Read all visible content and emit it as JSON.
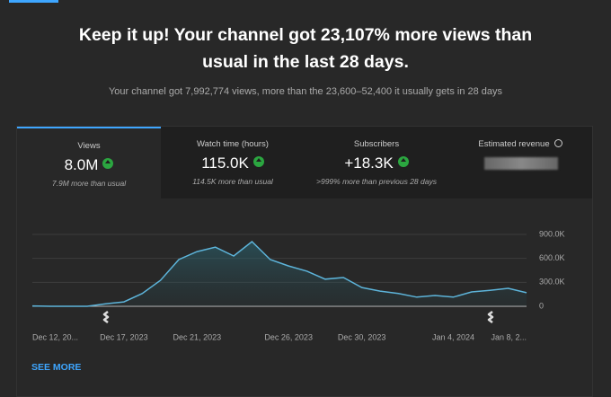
{
  "header": {
    "title": "Keep it up! Your channel got 23,107% more views than usual in the last 28 days.",
    "subtitle": "Your channel got 7,992,774 views, more than the 23,600–52,400 it usually gets in 28 days"
  },
  "tabs": [
    {
      "label": "Views",
      "value": "8.0M",
      "note": "7.9M more than usual"
    },
    {
      "label": "Watch time (hours)",
      "value": "115.0K",
      "note": "114.5K more than usual"
    },
    {
      "label": "Subscribers",
      "value": "+18.3K",
      "note": ">999% more than previous 28 days"
    },
    {
      "label": "Estimated revenue"
    }
  ],
  "chart_data": {
    "type": "line",
    "categories": [
      "Dec 12, 20...",
      null,
      null,
      null,
      null,
      "Dec 17, 2023",
      null,
      null,
      null,
      "Dec 21, 2023",
      null,
      null,
      null,
      null,
      "Dec 26, 2023",
      null,
      null,
      null,
      "Dec 30, 2023",
      null,
      null,
      null,
      null,
      "Jan 4, 2024",
      null,
      null,
      null,
      "Jan 8, 2..."
    ],
    "values": [
      5000,
      0,
      0,
      0,
      30000,
      55000,
      160000,
      325000,
      585000,
      685000,
      740000,
      630000,
      810000,
      585000,
      505000,
      440000,
      340000,
      360000,
      235000,
      190000,
      160000,
      115000,
      135000,
      115000,
      180000,
      200000,
      225000,
      170000
    ],
    "color": "#5db4da",
    "ylim": [
      0,
      900000
    ],
    "yticks": [
      0,
      {
        "value": 300000,
        "label": "300.0K"
      },
      {
        "value": 600000,
        "label": "600.0K"
      },
      {
        "value": 900000,
        "label": "900.0K"
      }
    ],
    "grid": true
  },
  "see_more": "SEE MORE"
}
